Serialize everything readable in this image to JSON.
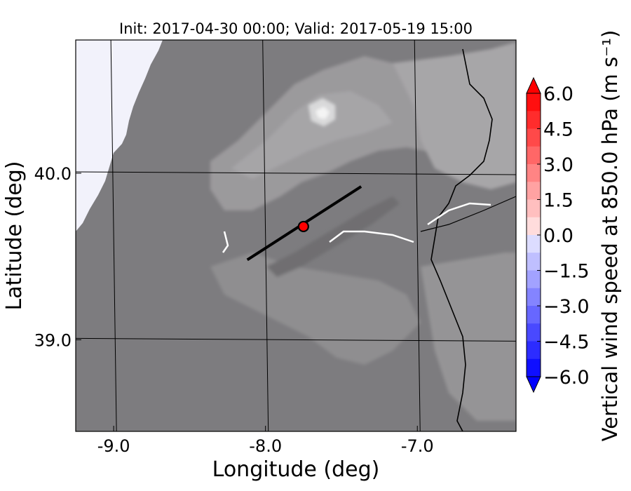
{
  "chart_data": {
    "type": "heatmap",
    "title": "Init: 2017-04-30 00:00; Valid: 2017-05-19 15:00",
    "xlabel": "Longitude (deg)",
    "ylabel": "Latitude (deg)",
    "xlim": [
      -9.25,
      -6.35
    ],
    "ylim": [
      38.45,
      40.8
    ],
    "x_ticks": [
      {
        "value": -9.0,
        "label": "-9.0"
      },
      {
        "value": -8.0,
        "label": "-8.0"
      },
      {
        "value": -7.0,
        "label": "-7.0"
      }
    ],
    "y_ticks": [
      {
        "value": 40.0,
        "label": "40.0"
      },
      {
        "value": 39.0,
        "label": "39.0"
      }
    ],
    "grid": true,
    "cross_section_line": {
      "start": [
        -8.12,
        39.48
      ],
      "end": [
        -7.37,
        39.92
      ]
    },
    "marker": {
      "lon": -7.75,
      "lat": 39.68,
      "color": "#ff0000"
    },
    "colorbar": {
      "label": "Vertical wind speed at 850.0 hPa (m s⁻¹)",
      "min": -6.0,
      "max": 6.0,
      "extend": "both",
      "ticks": [
        6.0,
        4.5,
        3.0,
        1.5,
        0.0,
        -1.5,
        -3.0,
        -4.5,
        -6.0
      ],
      "tick_labels": [
        "6.0",
        "4.5",
        "3.0",
        "1.5",
        "0.0",
        "−1.5",
        "−3.0",
        "−4.5",
        "−6.0"
      ],
      "positive_color": "#ff0000",
      "negative_color": "#0000ff",
      "levels": 16
    }
  }
}
